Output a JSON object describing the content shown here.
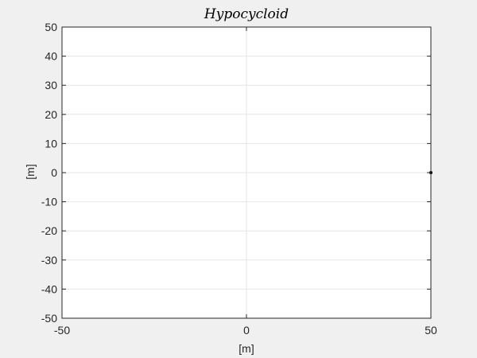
{
  "chart_data": {
    "type": "line",
    "title": "Hypocycloid",
    "xlabel": "[m]",
    "ylabel": "[m]",
    "xlim": [
      -50,
      50
    ],
    "ylim": [
      -50,
      50
    ],
    "xticks": [
      -50,
      0,
      50
    ],
    "yticks": [
      -50,
      -40,
      -30,
      -20,
      -10,
      0,
      10,
      20,
      30,
      40,
      50
    ],
    "grid": true,
    "series": [
      {
        "x": [
          50
        ],
        "y": [
          0
        ],
        "color": "#000000"
      }
    ],
    "colors": {
      "background": "#f0f0f0",
      "axes_background": "#ffffff",
      "axis": "#262626",
      "grid": "#e6e6e6"
    }
  }
}
